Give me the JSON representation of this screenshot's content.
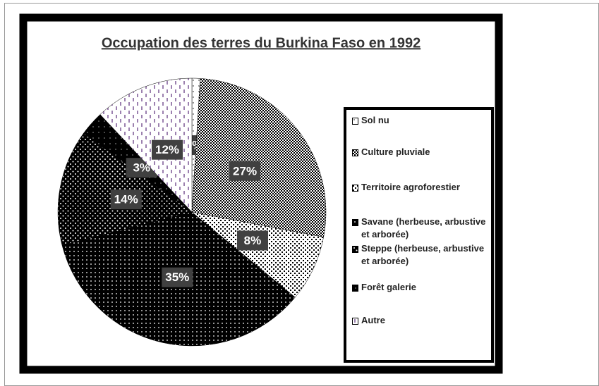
{
  "chart_data": {
    "type": "pie",
    "title": "Occupation des terres du Burkina Faso en 1992",
    "categories": [
      "Sol nu",
      "Culture pluviale",
      "Territoire agroforestier",
      "Savane (herbeuse, arbustive et arborée)",
      "Steppe  (herbeuse, arbustive et arborée)",
      "Forêt galerie",
      "Autre"
    ],
    "values": [
      1,
      27,
      8,
      35,
      14,
      3,
      12
    ],
    "value_labels": [
      "1%",
      "27%",
      "8%",
      "35%",
      "14%",
      "3%",
      "12%"
    ],
    "colors": [
      "#000000",
      "#000000",
      "#000000",
      "#000000",
      "#000000",
      "#000000",
      "#5b2d7a"
    ]
  }
}
